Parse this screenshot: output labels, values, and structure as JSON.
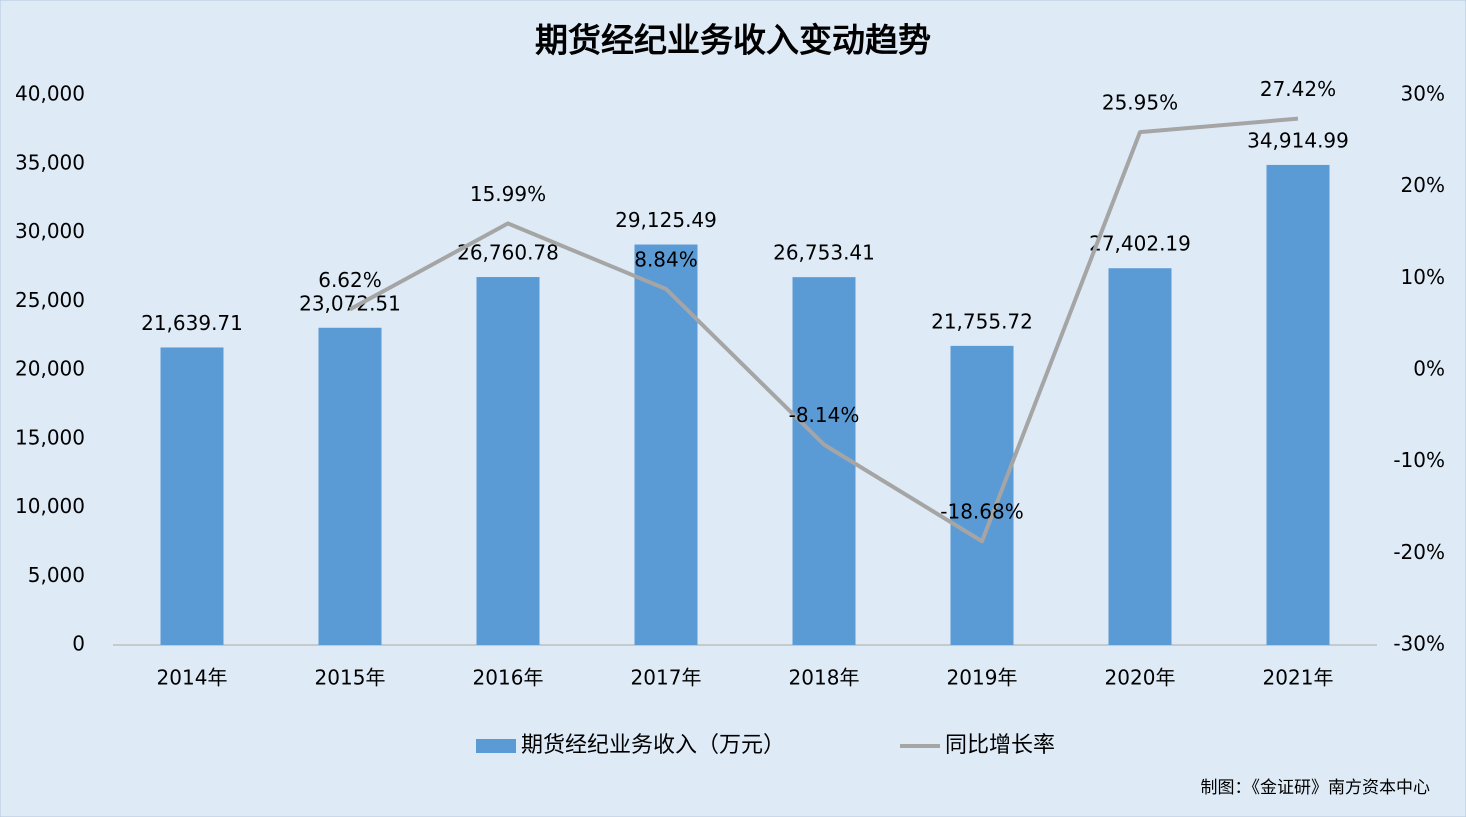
{
  "chart_data": {
    "type": "bar",
    "title": "期货经纪业务收入变动趋势",
    "categories": [
      "2014年",
      "2015年",
      "2016年",
      "2017年",
      "2018年",
      "2019年",
      "2020年",
      "2021年"
    ],
    "series": [
      {
        "name": "期货经纪业务收入（万元）",
        "type": "bar",
        "color": "#5b9bd5",
        "values": [
          21639.71,
          23072.51,
          26760.78,
          29125.49,
          26753.41,
          21755.72,
          27402.19,
          34914.99
        ],
        "value_labels": [
          "21,639.71",
          "23,072.51",
          "26,760.78",
          "29,125.49",
          "26,753.41",
          "21,755.72",
          "27,402.19",
          "34,914.99"
        ]
      },
      {
        "name": "同比增长率",
        "type": "line",
        "axis": "y2",
        "color": "#a5a5a5",
        "values": [
          null,
          6.62,
          15.99,
          8.84,
          -8.14,
          -18.68,
          25.95,
          27.42
        ],
        "value_labels": [
          null,
          "6.62%",
          "15.99%",
          "8.84%",
          "-8.14%",
          "-18.68%",
          "25.95%",
          "27.42%"
        ]
      }
    ],
    "ylim": [
      0,
      40000
    ],
    "yticks": [
      0,
      {
        "value": 5000,
        "label": "5,000"
      },
      {
        "value": 10000,
        "label": "10,000"
      },
      {
        "value": 15000,
        "label": "15,000"
      },
      {
        "value": 20000,
        "label": "20,000"
      },
      {
        "value": 25000,
        "label": "25,000"
      },
      {
        "value": 30000,
        "label": "30,000"
      },
      {
        "value": 35000,
        "label": "35,000"
      },
      {
        "value": 40000,
        "label": "40,000"
      }
    ],
    "y2lim": [
      -30,
      30
    ],
    "y2ticks": [
      {
        "value": -30,
        "label": "-30%"
      },
      {
        "value": -20,
        "label": "-20%"
      },
      {
        "value": -10,
        "label": "-10%"
      },
      {
        "value": 0,
        "label": "0%"
      },
      {
        "value": 10,
        "label": "10%"
      },
      {
        "value": 20,
        "label": "20%"
      },
      {
        "value": 30,
        "label": "30%"
      }
    ],
    "grid": false,
    "legend": "bottom",
    "source": "制图：《金证研》南方资本中心"
  }
}
